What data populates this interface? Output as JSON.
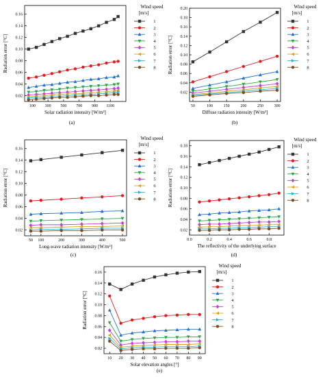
{
  "figure": {
    "panel_labels": [
      "(a)",
      "(b)",
      "(c)",
      "(d)",
      "(e)"
    ]
  },
  "series_colors": [
    "#333333",
    "#e41a1c",
    "#1f6fd1",
    "#27a845",
    "#c040d8",
    "#d9a21b",
    "#26b3d9",
    "#7f4a22"
  ],
  "series_markers": [
    "square",
    "circle",
    "triangle-up",
    "triangle-down",
    "diamond",
    "triangle-left",
    "triangle-right",
    "hexagon"
  ],
  "chart_data": [
    {
      "id": "a",
      "type": "line",
      "panel_label": "(a)",
      "xlabel": "Solar radiation intensity [W/m²]",
      "ylabel": "Radiation error [°C]",
      "xlim": [
        0,
        1300
      ],
      "ylim": [
        0.01,
        0.175
      ],
      "xticks": [
        100,
        300,
        500,
        700,
        900,
        1100
      ],
      "yticks": [
        0.02,
        0.04,
        0.06,
        0.08,
        0.1,
        0.12,
        0.14,
        0.16
      ],
      "grid": false,
      "legend_title": [
        "Wind speed",
        "[m/s]"
      ],
      "legend_position": "right",
      "x": [
        50,
        150,
        250,
        350,
        450,
        550,
        650,
        750,
        850,
        950,
        1050,
        1150,
        1200
      ],
      "series": [
        {
          "name": "1",
          "values": [
            0.1,
            0.103,
            0.108,
            0.113,
            0.118,
            0.122,
            0.127,
            0.131,
            0.135,
            0.14,
            0.146,
            0.151,
            0.156
          ]
        },
        {
          "name": "2",
          "values": [
            0.05,
            0.052,
            0.055,
            0.058,
            0.061,
            0.064,
            0.066,
            0.069,
            0.071,
            0.073,
            0.076,
            0.078,
            0.079
          ]
        },
        {
          "name": "3",
          "values": [
            0.034,
            0.036,
            0.038,
            0.039,
            0.041,
            0.043,
            0.044,
            0.046,
            0.048,
            0.049,
            0.051,
            0.052,
            0.054
          ]
        },
        {
          "name": "4",
          "values": [
            0.026,
            0.027,
            0.029,
            0.03,
            0.031,
            0.033,
            0.034,
            0.035,
            0.036,
            0.037,
            0.038,
            0.039,
            0.04
          ]
        },
        {
          "name": "5",
          "values": [
            0.021,
            0.022,
            0.023,
            0.024,
            0.025,
            0.026,
            0.027,
            0.028,
            0.029,
            0.03,
            0.031,
            0.032,
            0.033
          ]
        },
        {
          "name": "6",
          "values": [
            0.018,
            0.019,
            0.02,
            0.021,
            0.022,
            0.023,
            0.023,
            0.024,
            0.025,
            0.026,
            0.027,
            0.028,
            0.029
          ]
        },
        {
          "name": "7",
          "values": [
            0.016,
            0.017,
            0.017,
            0.018,
            0.019,
            0.02,
            0.021,
            0.021,
            0.022,
            0.023,
            0.024,
            0.025,
            0.026
          ]
        },
        {
          "name": "8",
          "values": [
            0.013,
            0.014,
            0.015,
            0.016,
            0.017,
            0.017,
            0.018,
            0.019,
            0.02,
            0.02,
            0.021,
            0.022,
            0.022
          ]
        }
      ]
    },
    {
      "id": "b",
      "type": "line",
      "panel_label": "(b)",
      "xlabel": "Diffuse radiation intensity [W/m²]",
      "ylabel": "Radiation error [°C]",
      "xlim": [
        40,
        310
      ],
      "ylim": [
        0.0,
        0.2
      ],
      "xticks": [
        50,
        100,
        150,
        200,
        250,
        300
      ],
      "yticks": [
        0.02,
        0.04,
        0.06,
        0.08,
        0.1,
        0.12,
        0.14,
        0.16,
        0.18,
        0.2
      ],
      "grid": false,
      "legend_title": [
        "Wind speed",
        "[m/s]"
      ],
      "legend_position": "right",
      "x": [
        50,
        100,
        150,
        200,
        250,
        300
      ],
      "series": [
        {
          "name": "1",
          "values": [
            0.085,
            0.106,
            0.128,
            0.15,
            0.17,
            0.191
          ]
        },
        {
          "name": "2",
          "values": [
            0.042,
            0.053,
            0.064,
            0.075,
            0.086,
            0.097
          ]
        },
        {
          "name": "3",
          "values": [
            0.028,
            0.035,
            0.042,
            0.05,
            0.057,
            0.064
          ]
        },
        {
          "name": "4",
          "values": [
            0.022,
            0.027,
            0.032,
            0.037,
            0.042,
            0.047
          ]
        },
        {
          "name": "5",
          "values": [
            0.018,
            0.022,
            0.026,
            0.03,
            0.034,
            0.038
          ]
        },
        {
          "name": "6",
          "values": [
            0.015,
            0.018,
            0.022,
            0.025,
            0.029,
            0.032
          ]
        },
        {
          "name": "7",
          "values": [
            0.013,
            0.016,
            0.019,
            0.022,
            0.025,
            0.028
          ]
        },
        {
          "name": "8",
          "values": [
            0.011,
            0.014,
            0.017,
            0.019,
            0.022,
            0.024
          ]
        }
      ]
    },
    {
      "id": "c",
      "type": "line",
      "panel_label": "(c)",
      "xlabel": "Long-wave radiation intensity [W/m²]",
      "ylabel": "Radiation error [°C]",
      "xlim": [
        20,
        520
      ],
      "ylim": [
        0.01,
        0.175
      ],
      "xticks": [
        50,
        100,
        200,
        300,
        400,
        500
      ],
      "yticks": [
        0.02,
        0.04,
        0.06,
        0.08,
        0.1,
        0.12,
        0.14,
        0.16
      ],
      "grid": false,
      "legend_title": [
        "Wind speed",
        "[m/s]"
      ],
      "legend_position": "right",
      "x": [
        50,
        100,
        200,
        300,
        400,
        500
      ],
      "series": [
        {
          "name": "1",
          "values": [
            0.139,
            0.141,
            0.145,
            0.149,
            0.153,
            0.157
          ]
        },
        {
          "name": "2",
          "values": [
            0.07,
            0.071,
            0.073,
            0.075,
            0.077,
            0.079
          ]
        },
        {
          "name": "3",
          "values": [
            0.047,
            0.048,
            0.049,
            0.05,
            0.052,
            0.053
          ]
        },
        {
          "name": "4",
          "values": [
            0.035,
            0.036,
            0.037,
            0.038,
            0.039,
            0.04
          ]
        },
        {
          "name": "5",
          "values": [
            0.028,
            0.029,
            0.029,
            0.03,
            0.031,
            0.032
          ]
        },
        {
          "name": "6",
          "values": [
            0.024,
            0.024,
            0.025,
            0.026,
            0.026,
            0.027
          ]
        },
        {
          "name": "7",
          "values": [
            0.02,
            0.021,
            0.021,
            0.022,
            0.023,
            0.023
          ]
        },
        {
          "name": "8",
          "values": [
            0.018,
            0.018,
            0.019,
            0.019,
            0.02,
            0.02
          ]
        }
      ]
    },
    {
      "id": "d",
      "type": "line",
      "panel_label": "(d)",
      "xlabel": "The reflectivity of the underlying surface",
      "ylabel": "Radiation error [°C]",
      "xlim": [
        0.0,
        0.95
      ],
      "ylim": [
        0.01,
        0.19
      ],
      "xticks": [
        0.0,
        0.2,
        0.4,
        0.6,
        0.8
      ],
      "yticks": [
        0.02,
        0.04,
        0.06,
        0.08,
        0.1,
        0.12,
        0.14,
        0.16,
        0.18
      ],
      "grid": false,
      "legend_title": [
        "Wind speed",
        "[m/s]"
      ],
      "legend_position": "right",
      "x": [
        0.1,
        0.2,
        0.3,
        0.4,
        0.5,
        0.6,
        0.7,
        0.8,
        0.9
      ],
      "series": [
        {
          "name": "1",
          "values": [
            0.144,
            0.148,
            0.152,
            0.156,
            0.16,
            0.164,
            0.168,
            0.173,
            0.178
          ]
        },
        {
          "name": "2",
          "values": [
            0.073,
            0.075,
            0.077,
            0.079,
            0.081,
            0.083,
            0.085,
            0.087,
            0.09
          ]
        },
        {
          "name": "3",
          "values": [
            0.049,
            0.05,
            0.052,
            0.053,
            0.054,
            0.056,
            0.057,
            0.058,
            0.06
          ]
        },
        {
          "name": "4",
          "values": [
            0.037,
            0.038,
            0.039,
            0.04,
            0.041,
            0.042,
            0.043,
            0.044,
            0.045
          ]
        },
        {
          "name": "5",
          "values": [
            0.03,
            0.031,
            0.031,
            0.032,
            0.033,
            0.034,
            0.035,
            0.035,
            0.036
          ]
        },
        {
          "name": "6",
          "values": [
            0.025,
            0.026,
            0.026,
            0.027,
            0.028,
            0.028,
            0.029,
            0.03,
            0.03
          ]
        },
        {
          "name": "7",
          "values": [
            0.022,
            0.022,
            0.023,
            0.023,
            0.024,
            0.024,
            0.025,
            0.026,
            0.026
          ]
        },
        {
          "name": "8",
          "values": [
            0.019,
            0.019,
            0.02,
            0.02,
            0.021,
            0.021,
            0.022,
            0.022,
            0.023
          ]
        }
      ]
    },
    {
      "id": "e",
      "type": "line",
      "panel_label": "(e)",
      "xlabel": "Solar elevation angles [°]",
      "ylabel": "Radiation error [°C]",
      "xlim": [
        5,
        95
      ],
      "ylim": [
        0.01,
        0.17
      ],
      "xticks": [
        10,
        20,
        30,
        40,
        50,
        60,
        70,
        80,
        90
      ],
      "yticks": [
        0.02,
        0.04,
        0.06,
        0.08,
        0.1,
        0.12,
        0.14,
        0.16
      ],
      "grid": false,
      "legend_title": [
        "Wind speed",
        "[m/s]"
      ],
      "legend_position": "right",
      "x": [
        10,
        20,
        30,
        40,
        50,
        60,
        70,
        80,
        90
      ],
      "series": [
        {
          "name": "1",
          "values": [
            0.138,
            0.128,
            0.138,
            0.145,
            0.151,
            0.155,
            0.158,
            0.16,
            0.161
          ]
        },
        {
          "name": "2",
          "values": [
            0.116,
            0.066,
            0.072,
            0.075,
            0.078,
            0.08,
            0.081,
            0.082,
            0.082
          ]
        },
        {
          "name": "3",
          "values": [
            0.09,
            0.044,
            0.048,
            0.05,
            0.052,
            0.053,
            0.054,
            0.055,
            0.055
          ]
        },
        {
          "name": "4",
          "values": [
            0.067,
            0.033,
            0.036,
            0.038,
            0.039,
            0.04,
            0.04,
            0.041,
            0.041
          ]
        },
        {
          "name": "5",
          "values": [
            0.053,
            0.026,
            0.029,
            0.03,
            0.031,
            0.032,
            0.032,
            0.033,
            0.033
          ]
        },
        {
          "name": "6",
          "values": [
            0.044,
            0.022,
            0.024,
            0.025,
            0.026,
            0.027,
            0.027,
            0.027,
            0.028
          ]
        },
        {
          "name": "7",
          "values": [
            0.038,
            0.019,
            0.021,
            0.022,
            0.022,
            0.023,
            0.023,
            0.023,
            0.024
          ]
        },
        {
          "name": "8",
          "values": [
            0.033,
            0.016,
            0.018,
            0.019,
            0.019,
            0.02,
            0.02,
            0.02,
            0.021
          ]
        }
      ]
    }
  ]
}
